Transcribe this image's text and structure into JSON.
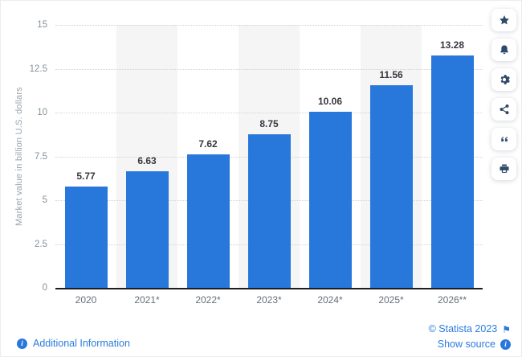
{
  "chart_data": {
    "type": "bar",
    "title": "",
    "categories": [
      "2020",
      "2021*",
      "2022*",
      "2023*",
      "2024*",
      "2025*",
      "2026**"
    ],
    "values": [
      5.77,
      6.63,
      7.62,
      8.75,
      10.06,
      11.56,
      13.28
    ],
    "value_labels": [
      "5.77",
      "6.63",
      "7.62",
      "8.75",
      "10.06",
      "11.56",
      "13.28"
    ],
    "xlabel": "",
    "ylabel": "Market value in billion U.S. dollars",
    "ylim": [
      0,
      15
    ],
    "yticks": [
      0,
      2.5,
      5,
      7.5,
      10,
      12.5,
      15
    ],
    "ytick_labels": [
      "0",
      "2.5",
      "5",
      "7.5",
      "10",
      "12.5",
      "15"
    ],
    "grid": "horizontal dotted",
    "striped_columns": [
      1,
      3,
      5
    ],
    "legend": null,
    "bar_color": "#2878dc"
  },
  "colors": {
    "bar": "#2878dc",
    "link": "#2b7bdc",
    "toolbar_icon": "#2e4a6b",
    "stripe": "#f5f5f6",
    "axis_line": "#1c1c22"
  },
  "toolbar": {
    "buttons": [
      {
        "id": "favorite-button",
        "icon": "star-icon"
      },
      {
        "id": "notifications-button",
        "icon": "bell-icon"
      },
      {
        "id": "settings-button",
        "icon": "gear-icon"
      },
      {
        "id": "share-button",
        "icon": "share-icon"
      },
      {
        "id": "cite-button",
        "icon": "quote-icon"
      },
      {
        "id": "print-button",
        "icon": "printer-icon"
      }
    ]
  },
  "footer": {
    "additional_information": "Additional Information",
    "copyright": "© Statista 2023",
    "show_source": "Show source",
    "info_glyph": "i",
    "flag_glyph": "⚑"
  }
}
